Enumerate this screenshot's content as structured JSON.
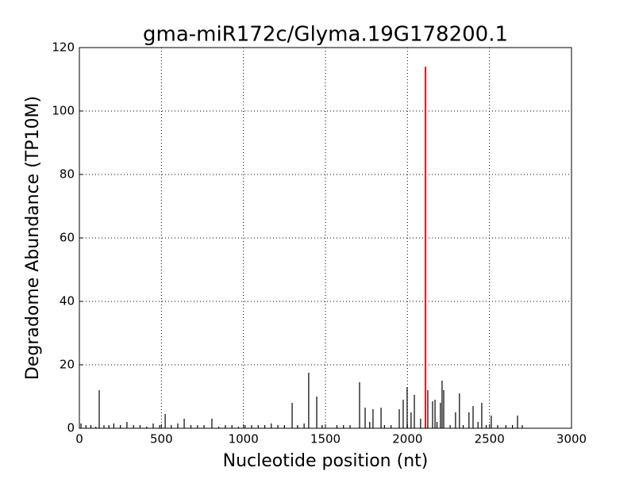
{
  "chart_data": {
    "type": "vlines",
    "title": "gma-miR172c/Glyma.19G178200.1",
    "x_label": "Nucleotide position (nt)",
    "y_label": "Degradome Abundance (TP10M)",
    "xlim": [
      0,
      3000
    ],
    "ylim": [
      0,
      120
    ],
    "xticks": [
      0,
      500,
      1000,
      1500,
      2000,
      2500,
      3000
    ],
    "yticks": [
      0,
      20,
      40,
      60,
      80,
      100,
      120
    ],
    "grid": true,
    "series": [
      {
        "color": "#000000",
        "x": [
          121,
          523,
          639,
          808,
          1297,
          1398,
          1447,
          1708,
          1742,
          1790,
          1839,
          1950,
          1974,
          1998,
          2022,
          2042,
          2124,
          2153,
          2168,
          2201,
          2211,
          2221,
          2293,
          2317,
          2375,
          2400,
          2453,
          2511,
          2671,
          10,
          40,
          70,
          100,
          150,
          180,
          210,
          250,
          290,
          330,
          370,
          410,
          450,
          490,
          560,
          600,
          680,
          720,
          760,
          850,
          890,
          930,
          970,
          1010,
          1050,
          1090,
          1130,
          1170,
          1210,
          1250,
          1330,
          1370,
          1480,
          1570,
          1610,
          1650,
          1770,
          1860,
          1900,
          2080,
          2180,
          2260,
          2340,
          2430,
          2480,
          2550,
          2600,
          2640,
          2700
        ],
        "values": [
          12,
          4.5,
          3,
          3,
          8,
          17.5,
          10,
          14.5,
          6.5,
          6,
          6.5,
          6,
          9,
          13,
          5,
          10.5,
          12,
          8.5,
          9,
          8,
          15,
          12,
          5,
          11,
          5,
          7,
          8,
          4,
          4,
          1.5,
          1,
          1,
          0.5,
          1,
          1,
          1.5,
          1,
          2,
          1,
          1,
          0.5,
          1.5,
          1,
          1,
          1.5,
          1,
          1,
          1,
          0.5,
          1,
          1,
          0.5,
          1,
          1,
          1,
          1,
          1.5,
          1,
          1,
          1,
          1.5,
          1,
          1,
          1,
          1,
          2,
          1,
          1,
          3,
          2,
          1,
          1,
          2,
          1,
          1,
          1,
          1,
          1
        ]
      },
      {
        "color": "#ff0000",
        "x": [
          2110
        ],
        "values": [
          114
        ]
      }
    ]
  }
}
